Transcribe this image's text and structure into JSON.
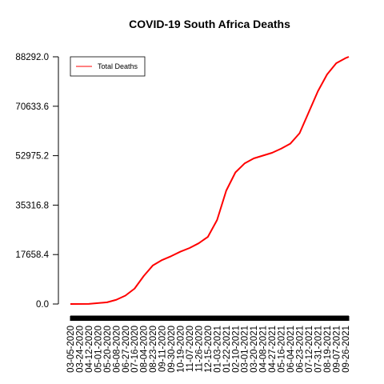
{
  "chart_data": {
    "type": "line",
    "title": "COVID-19 South Africa Deaths",
    "xlabel": "",
    "ylabel": "",
    "ylim": [
      0,
      88292.0
    ],
    "y_ticks": [
      "0.0",
      "17658.4",
      "35316.8",
      "52975.2",
      "70633.6",
      "88292.0"
    ],
    "x_tick_labels": [
      "03-05-2020",
      "03-24-2020",
      "04-12-2020",
      "05-01-2020",
      "05-20-2020",
      "06-08-2020",
      "06-27-2020",
      "07-16-2020",
      "08-04-2020",
      "08-23-2020",
      "09-11-2020",
      "09-30-2020",
      "10-19-2020",
      "11-07-2020",
      "11-26-2020",
      "12-15-2020",
      "01-03-2021",
      "01-22-2021",
      "02-10-2021",
      "03-01-2021",
      "03-20-2021",
      "04-08-2021",
      "04-27-2021",
      "05-16-2021",
      "06-04-2021",
      "06-23-2021",
      "07-12-2021",
      "07-31-2021",
      "08-19-2021",
      "09-07-2021",
      "09-26-2021"
    ],
    "x_range": [
      "03-05-2020",
      "10-03-2021"
    ],
    "grid": false,
    "legend": {
      "position": "top-left",
      "entries": [
        "Total Deaths"
      ]
    },
    "series": [
      {
        "name": "Total Deaths",
        "color": "#ff0000",
        "points": [
          [
            "03-05-2020",
            0
          ],
          [
            "04-12-2020",
            50
          ],
          [
            "05-20-2020",
            600
          ],
          [
            "06-08-2020",
            1500
          ],
          [
            "06-27-2020",
            3000
          ],
          [
            "07-16-2020",
            5500
          ],
          [
            "08-04-2020",
            10000
          ],
          [
            "08-23-2020",
            13800
          ],
          [
            "09-11-2020",
            15700
          ],
          [
            "09-30-2020",
            17100
          ],
          [
            "10-19-2020",
            18700
          ],
          [
            "11-07-2020",
            20000
          ],
          [
            "11-26-2020",
            21700
          ],
          [
            "12-15-2020",
            24000
          ],
          [
            "01-03-2021",
            30000
          ],
          [
            "01-22-2021",
            40500
          ],
          [
            "02-10-2021",
            47000
          ],
          [
            "03-01-2021",
            50200
          ],
          [
            "03-20-2021",
            52000
          ],
          [
            "04-08-2021",
            53000
          ],
          [
            "04-27-2021",
            54000
          ],
          [
            "05-16-2021",
            55500
          ],
          [
            "06-04-2021",
            57300
          ],
          [
            "06-23-2021",
            61000
          ],
          [
            "07-12-2021",
            68500
          ],
          [
            "07-31-2021",
            76000
          ],
          [
            "08-19-2021",
            82000
          ],
          [
            "09-07-2021",
            86000
          ],
          [
            "09-26-2021",
            87800
          ],
          [
            "10-03-2021",
            88292
          ]
        ]
      }
    ]
  }
}
